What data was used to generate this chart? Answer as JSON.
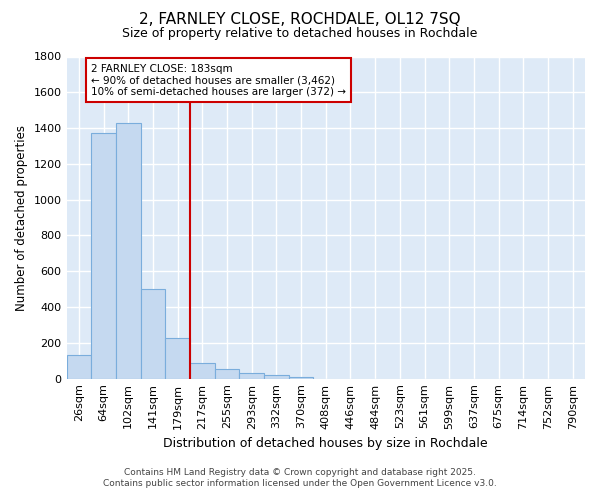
{
  "title_line1": "2, FARNLEY CLOSE, ROCHDALE, OL12 7SQ",
  "title_line2": "Size of property relative to detached houses in Rochdale",
  "xlabel": "Distribution of detached houses by size in Rochdale",
  "ylabel": "Number of detached properties",
  "categories": [
    "26sqm",
    "64sqm",
    "102sqm",
    "141sqm",
    "179sqm",
    "217sqm",
    "255sqm",
    "293sqm",
    "332sqm",
    "370sqm",
    "408sqm",
    "446sqm",
    "484sqm",
    "523sqm",
    "561sqm",
    "599sqm",
    "637sqm",
    "675sqm",
    "714sqm",
    "752sqm",
    "790sqm"
  ],
  "values": [
    130,
    1370,
    1430,
    500,
    225,
    90,
    55,
    30,
    20,
    10,
    0,
    0,
    0,
    0,
    0,
    0,
    0,
    0,
    0,
    0,
    0
  ],
  "bar_color": "#c5d9f0",
  "bar_edge_color": "#7aaddc",
  "plot_bg_color": "#deeaf7",
  "fig_bg_color": "#ffffff",
  "grid_color": "#ffffff",
  "vline_x_index": 4,
  "vline_color": "#cc0000",
  "annotation_text": "2 FARNLEY CLOSE: 183sqm\n← 90% of detached houses are smaller (3,462)\n10% of semi-detached houses are larger (372) →",
  "annotation_box_color": "#ffffff",
  "annotation_box_edge": "#cc0000",
  "ylim": [
    0,
    1800
  ],
  "yticks": [
    0,
    200,
    400,
    600,
    800,
    1000,
    1200,
    1400,
    1600,
    1800
  ],
  "footer_line1": "Contains HM Land Registry data © Crown copyright and database right 2025.",
  "footer_line2": "Contains public sector information licensed under the Open Government Licence v3.0."
}
